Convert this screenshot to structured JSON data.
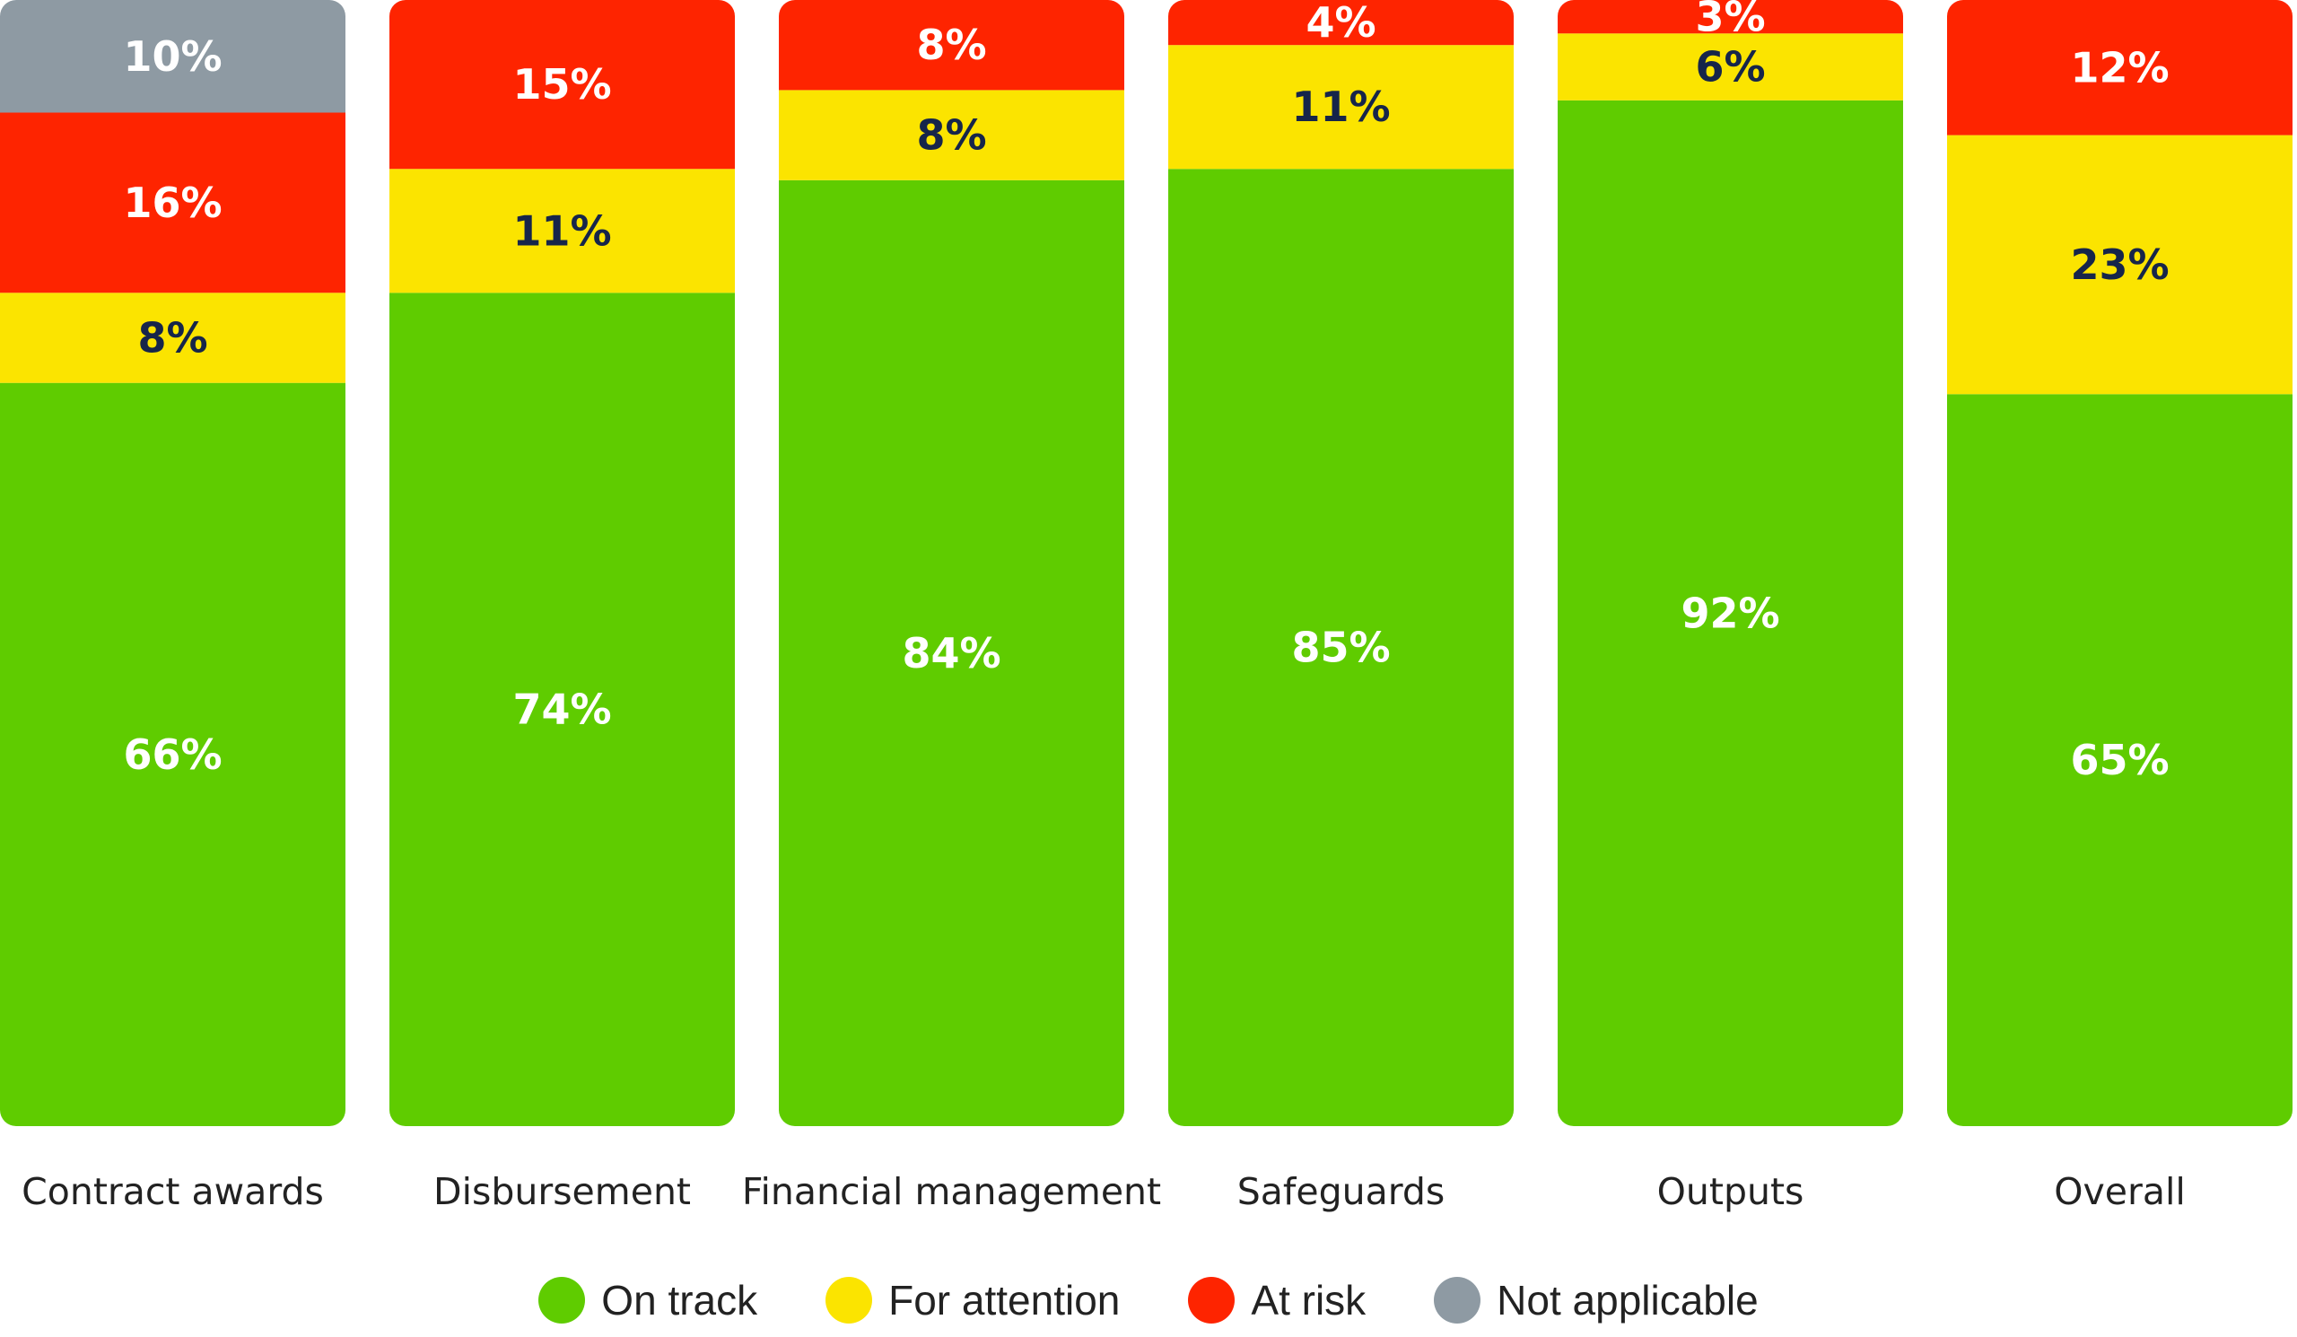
{
  "chart_data": {
    "type": "bar",
    "stacked": true,
    "percent_stacked": true,
    "categories": [
      "Contract awards",
      "Disbursement",
      "Financial management",
      "Safeguards",
      "Outputs",
      "Overall"
    ],
    "series": [
      {
        "name": "On track",
        "color": "#5fcc00",
        "values": [
          66,
          74,
          84,
          85,
          92,
          65
        ],
        "labels": [
          "66%",
          "74%",
          "84%",
          "85%",
          "92%",
          "65%"
        ]
      },
      {
        "name": "For attention",
        "color": "#fbe400",
        "values": [
          8,
          11,
          8,
          11,
          6,
          23
        ],
        "labels": [
          "8%",
          "11%",
          "8%",
          "11%",
          "6%",
          "23%"
        ]
      },
      {
        "name": "At risk",
        "color": "#fe2400",
        "values": [
          16,
          15,
          8,
          4,
          3,
          12
        ],
        "labels": [
          "16%",
          "15%",
          "8%",
          "4%",
          "3%",
          "12%"
        ]
      },
      {
        "name": "Not applicable",
        "color": "#8e9aa3",
        "values": [
          10,
          0,
          0,
          0,
          0,
          0
        ],
        "labels": [
          "10%",
          "",
          "",
          "",
          "",
          ""
        ]
      }
    ],
    "ylim": [
      0,
      100
    ],
    "legend_position": "bottom",
    "grid": false,
    "label_colors": {
      "light": "#ffffff",
      "dark": "#16254a"
    }
  }
}
